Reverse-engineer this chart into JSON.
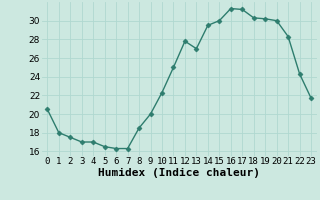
{
  "x": [
    0,
    1,
    2,
    3,
    4,
    5,
    6,
    7,
    8,
    9,
    10,
    11,
    12,
    13,
    14,
    15,
    16,
    17,
    18,
    19,
    20,
    21,
    22,
    23
  ],
  "y": [
    20.5,
    18.0,
    17.5,
    17.0,
    17.0,
    16.5,
    16.3,
    16.3,
    18.5,
    20.0,
    22.3,
    25.0,
    27.8,
    27.0,
    29.5,
    30.0,
    31.3,
    31.2,
    30.3,
    30.2,
    30.0,
    28.3,
    24.3,
    21.7
  ],
  "xlabel": "Humidex (Indice chaleur)",
  "xlim": [
    -0.5,
    23.5
  ],
  "ylim": [
    15.5,
    32
  ],
  "yticks": [
    16,
    18,
    20,
    22,
    24,
    26,
    28,
    30
  ],
  "xtick_labels": [
    "0",
    "1",
    "2",
    "3",
    "4",
    "5",
    "6",
    "7",
    "8",
    "9",
    "10",
    "11",
    "12",
    "13",
    "14",
    "15",
    "16",
    "17",
    "18",
    "19",
    "20",
    "21",
    "22",
    "23"
  ],
  "line_color": "#2e7d6e",
  "marker": "D",
  "marker_size": 2.5,
  "bg_color": "#cce8e0",
  "grid_color": "#b0d8d0",
  "xlabel_fontsize": 8,
  "tick_fontsize": 6.5
}
